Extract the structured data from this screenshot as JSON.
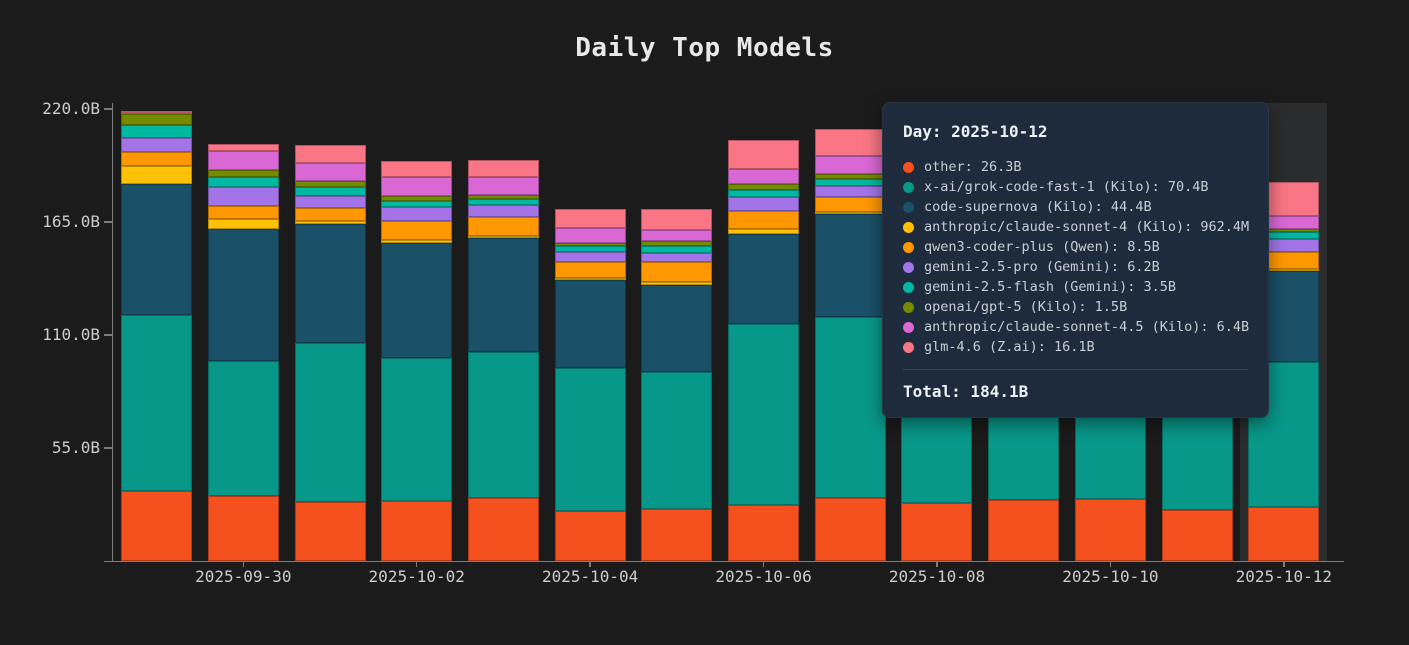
{
  "page": {
    "title": "Daily Top Models"
  },
  "colors": {
    "background": "#1b1b1b",
    "axis": "#7d7d7d",
    "tick_text": "#cccccc",
    "title_text": "#e8e8e8",
    "hover_band": "#2a2c2e",
    "tooltip_bg": "#1e2b3c",
    "tooltip_text": "#c7cfd6",
    "tooltip_strong_text": "#edf2f6"
  },
  "y_axis": {
    "ticks": [
      {
        "label": "220.0B",
        "value": 220
      },
      {
        "label": "165.0B",
        "value": 165
      },
      {
        "label": "110.0B",
        "value": 110
      },
      {
        "label": "55.0B",
        "value": 55
      }
    ]
  },
  "x_axis": {
    "ticks": [
      {
        "label": "2025-09-30",
        "index": 1
      },
      {
        "label": "2025-10-02",
        "index": 3
      },
      {
        "label": "2025-10-04",
        "index": 5
      },
      {
        "label": "2025-10-06",
        "index": 7
      },
      {
        "label": "2025-10-08",
        "index": 9
      },
      {
        "label": "2025-10-10",
        "index": 11
      },
      {
        "label": "2025-10-12",
        "index": 13
      }
    ]
  },
  "hover": {
    "day": "2025-10-12",
    "index": 13
  },
  "tooltip": {
    "title": "Day: 2025-10-12",
    "total": "Total: 184.1B",
    "items": [
      {
        "label": "other: 26.3B",
        "color": "#f4511e"
      },
      {
        "label": "x-ai/grok-code-fast-1 (Kilo): 70.4B",
        "color": "#089889"
      },
      {
        "label": "code-supernova (Kilo): 44.4B",
        "color": "#1a5068"
      },
      {
        "label": "anthropic/claude-sonnet-4 (Kilo): 962.4M",
        "color": "#ffc107"
      },
      {
        "label": "qwen3-coder-plus (Qwen): 8.5B",
        "color": "#ff9800"
      },
      {
        "label": "gemini-2.5-pro (Gemini): 6.2B",
        "color": "#a274e8"
      },
      {
        "label": "gemini-2.5-flash (Gemini): 3.5B",
        "color": "#00b9a3"
      },
      {
        "label": "openai/gpt-5 (Kilo): 1.5B",
        "color": "#748b00"
      },
      {
        "label": "anthropic/claude-sonnet-4.5 (Kilo): 6.4B",
        "color": "#d968d4"
      },
      {
        "label": "glm-4.6 (Z.ai): 16.1B",
        "color": "#fa7585"
      }
    ]
  },
  "chart_data": {
    "type": "bar",
    "stacked": true,
    "title": "Daily Top Models",
    "xlabel": "",
    "ylabel": "",
    "ylim": [
      0,
      220
    ],
    "ytick_step": 55,
    "grid": false,
    "legend": "none (hover tooltip only)",
    "unit": "B (billions of tokens)",
    "categories": [
      "2025-09-29",
      "2025-09-30",
      "2025-10-01",
      "2025-10-02",
      "2025-10-03",
      "2025-10-04",
      "2025-10-05",
      "2025-10-06",
      "2025-10-07",
      "2025-10-08",
      "2025-10-09",
      "2025-10-10",
      "2025-10-11",
      "2025-10-12"
    ],
    "series": [
      {
        "name": "other",
        "color": "#f4511e",
        "values": [
          34.0,
          31.8,
          28.8,
          29.3,
          30.8,
          24.4,
          25.4,
          27.4,
          30.8,
          28.4,
          29.8,
          30.3,
          25.0,
          26.3
        ]
      },
      {
        "name": "x-ai/grok-code-fast-1 (Kilo)",
        "color": "#089889",
        "values": [
          85.5,
          65.5,
          77.2,
          69.4,
          70.9,
          69.4,
          66.5,
          88.0,
          88.0,
          81.0,
          83.0,
          85.0,
          80.0,
          70.4
        ]
      },
      {
        "name": "code-supernova (Kilo)",
        "color": "#1a5068",
        "values": [
          64.0,
          64.5,
          58.2,
          56.2,
          55.7,
          43.0,
          42.5,
          44.0,
          49.9,
          58.0,
          55.0,
          52.0,
          48.0,
          44.4
        ]
      },
      {
        "name": "anthropic/claude-sonnet-4 (Kilo)",
        "color": "#ffc107",
        "values": [
          8.8,
          4.9,
          1.5,
          1.5,
          1.0,
          1.0,
          1.5,
          2.4,
          1.0,
          2.0,
          2.0,
          1.5,
          1.5,
          0.96
        ]
      },
      {
        "name": "qwen3-coder-plus (Qwen)",
        "color": "#ff9800",
        "values": [
          7.0,
          5.9,
          5.9,
          9.3,
          8.8,
          7.8,
          9.8,
          8.8,
          7.3,
          8.0,
          8.0,
          8.0,
          8.0,
          8.5
        ]
      },
      {
        "name": "gemini-2.5-pro (Gemini)",
        "color": "#a274e8",
        "values": [
          6.8,
          9.3,
          5.9,
          6.8,
          5.9,
          4.9,
          4.4,
          6.8,
          5.4,
          6.0,
          6.0,
          6.0,
          6.0,
          6.2
        ]
      },
      {
        "name": "gemini-2.5-flash (Gemini)",
        "color": "#00b9a3",
        "values": [
          5.9,
          4.9,
          4.4,
          2.9,
          2.9,
          2.9,
          3.4,
          3.4,
          3.4,
          3.5,
          3.5,
          3.5,
          3.5,
          3.5
        ]
      },
      {
        "name": "openai/gpt-5 (Kilo)",
        "color": "#748b00",
        "values": [
          5.4,
          3.4,
          2.9,
          2.4,
          2.0,
          1.5,
          2.4,
          2.9,
          2.4,
          2.0,
          2.0,
          2.0,
          1.5,
          1.5
        ]
      },
      {
        "name": "anthropic/claude-sonnet-4.5 (Kilo)",
        "color": "#d968d4",
        "values": [
          0.5,
          9.3,
          8.8,
          9.3,
          8.8,
          7.3,
          5.4,
          7.3,
          8.8,
          7.5,
          7.0,
          7.0,
          6.5,
          6.4
        ]
      },
      {
        "name": "glm-4.6 (Z.ai)",
        "color": "#fa7585",
        "values": [
          1.0,
          3.4,
          8.8,
          7.8,
          8.3,
          9.3,
          9.8,
          13.7,
          13.2,
          12.0,
          12.5,
          13.0,
          14.0,
          16.1
        ]
      }
    ]
  }
}
